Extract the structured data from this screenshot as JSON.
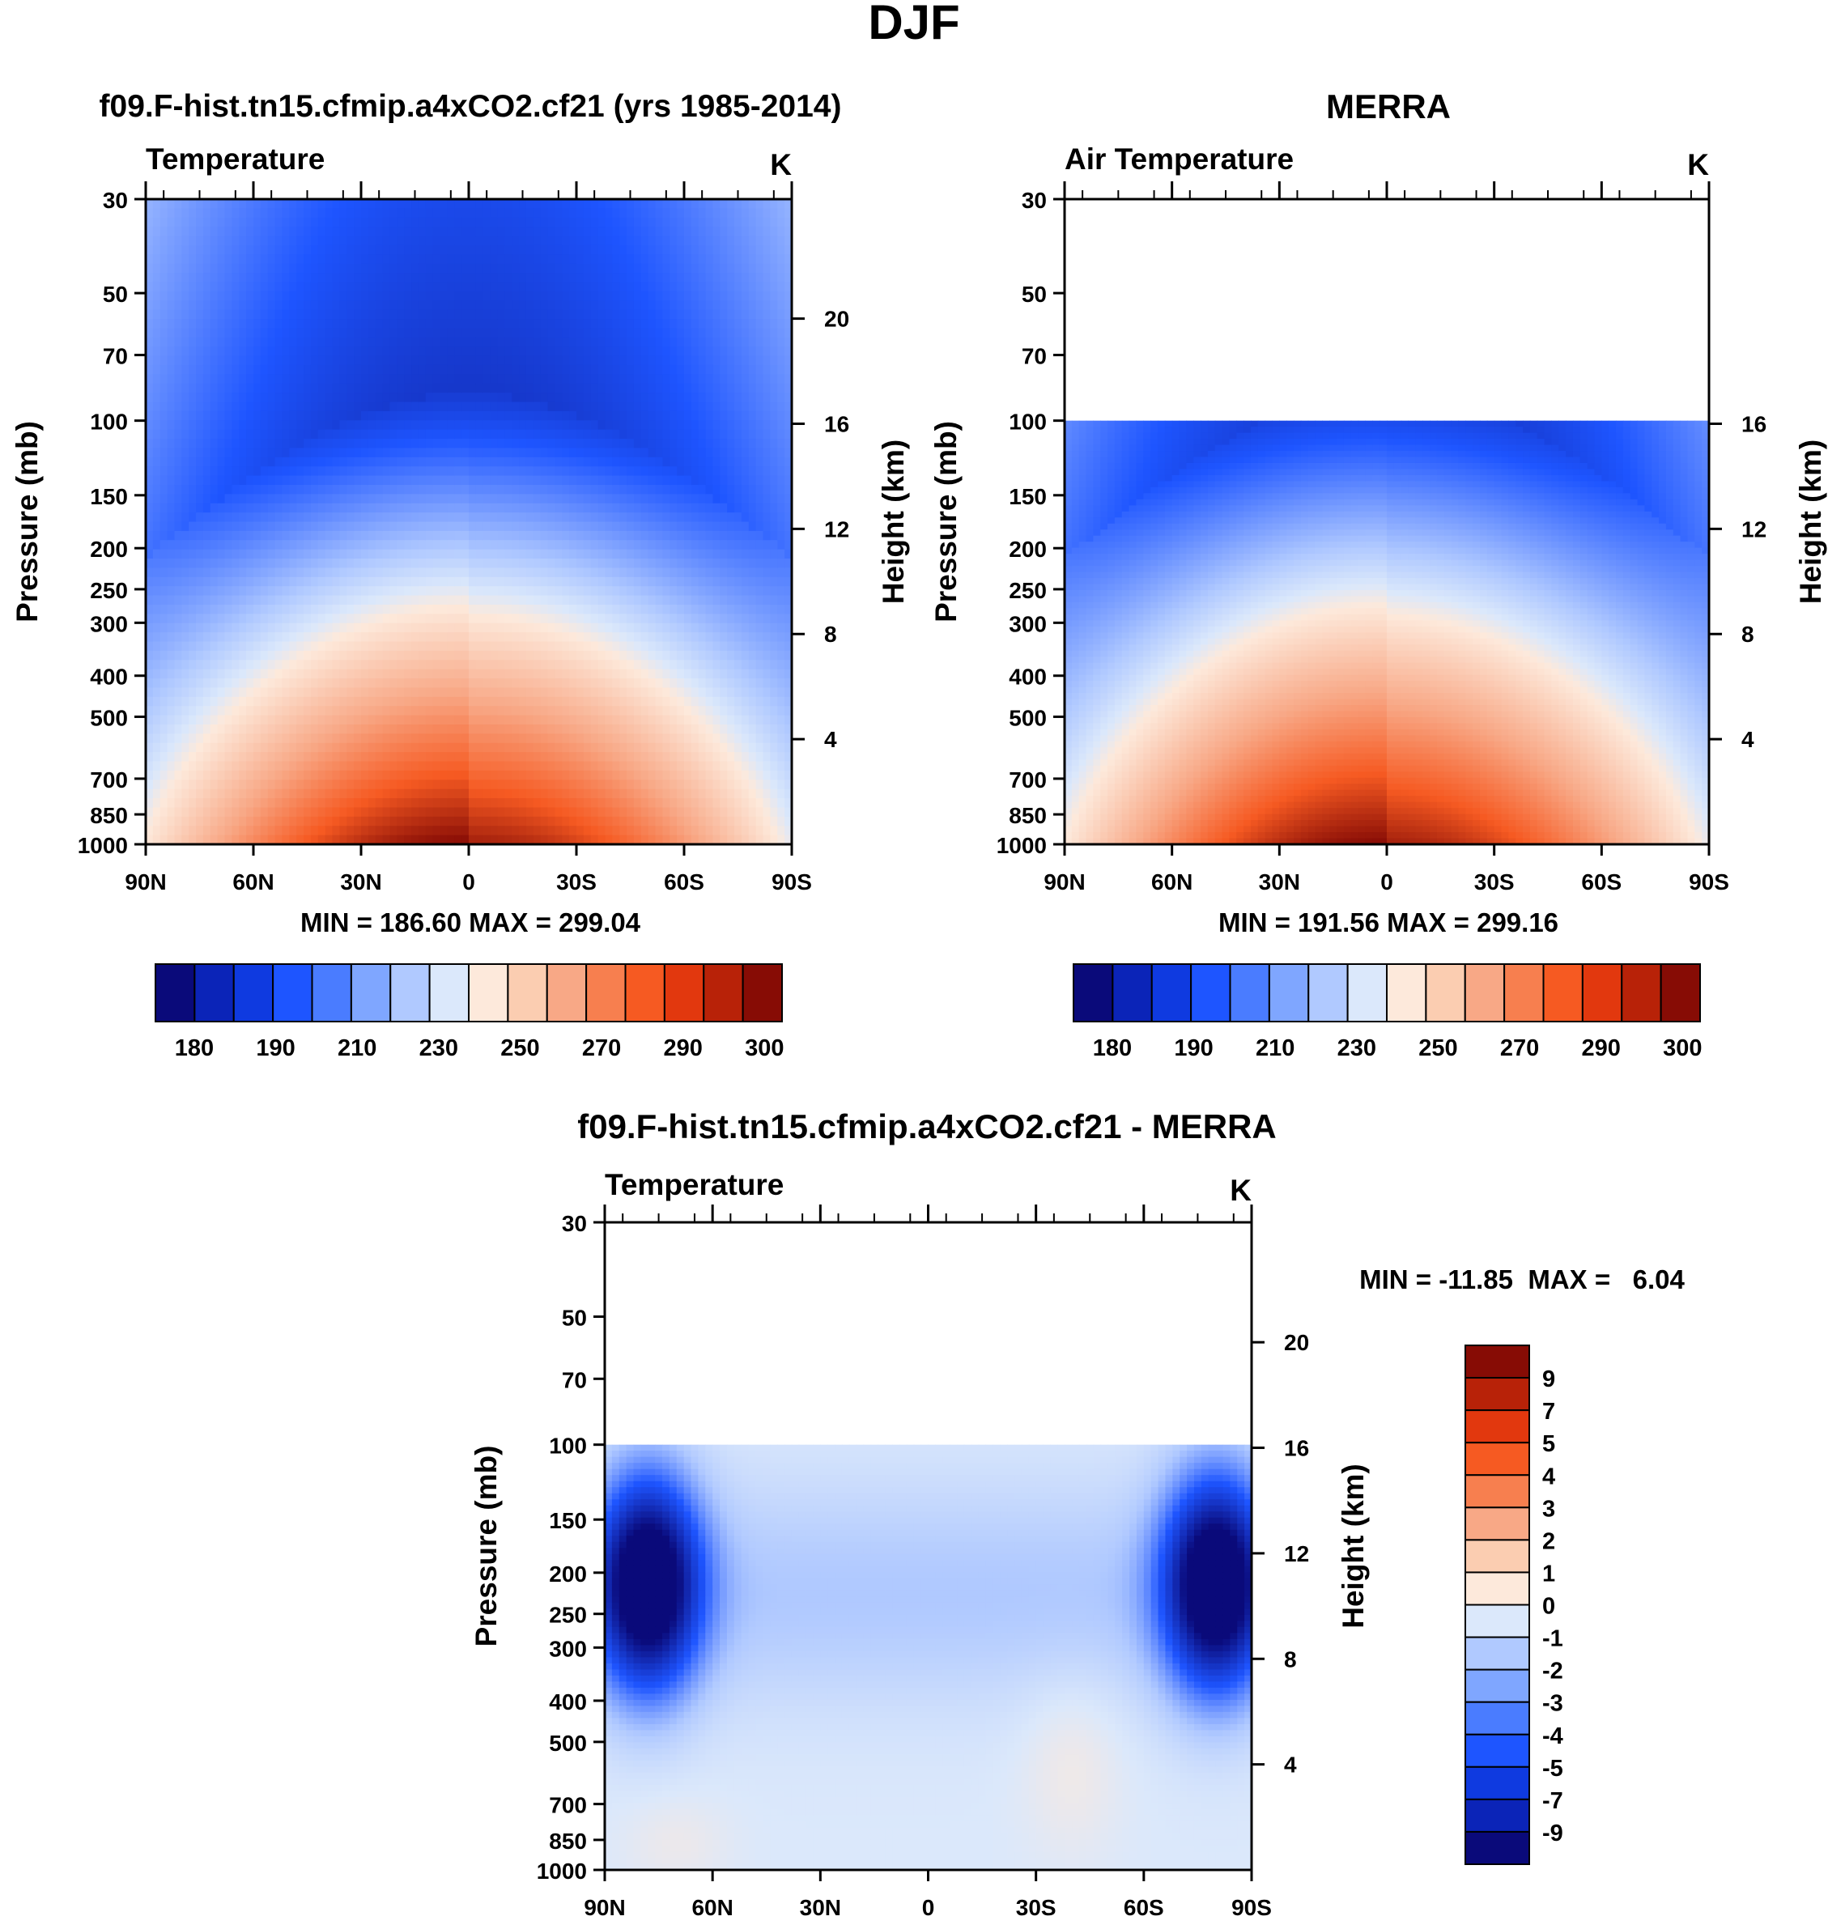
{
  "page_title": "DJF",
  "chart_data": [
    {
      "id": "model",
      "type": "heatmap",
      "title": "f09.F-hist.tn15.cfmip.a4xCO2.cf21 (yrs 1985-2014)",
      "subtitle_left": "Temperature",
      "units": "K",
      "xlabel": "",
      "ylabel": "Pressure (mb)",
      "ylabel_right": "Height (km)",
      "x_ticks": [
        "90N",
        "60N",
        "30N",
        "0",
        "30S",
        "60S",
        "90S"
      ],
      "y_ticks": [
        30,
        50,
        70,
        100,
        150,
        200,
        250,
        300,
        400,
        500,
        700,
        850,
        1000
      ],
      "height_ticks": [
        20,
        16,
        12,
        8,
        4
      ],
      "ylim": [
        1000,
        30
      ],
      "xlim": [
        90,
        -90
      ],
      "data_top_mb": 30,
      "stats": "MIN = 186.60  MAX = 299.04",
      "min": 186.6,
      "max": 299.04,
      "colorbar_labels": [
        "180",
        "190",
        "210",
        "230",
        "250",
        "270",
        "290",
        "300"
      ],
      "colorbar_colors": [
        "#0a0a7a",
        "#0b24b8",
        "#0f3ae0",
        "#1e55ff",
        "#4a7cff",
        "#7fa6ff",
        "#b0c9ff",
        "#dbe8fb",
        "#fde9db",
        "#fbcdb1",
        "#f8a886",
        "#f77f4f",
        "#f65a22",
        "#e2380e",
        "#b82208",
        "#870c05"
      ]
    },
    {
      "id": "merra",
      "type": "heatmap",
      "title": "MERRA",
      "subtitle_left": "Air Temperature",
      "units": "K",
      "xlabel": "",
      "ylabel": "Pressure (mb)",
      "ylabel_right": "Height (km)",
      "x_ticks": [
        "90N",
        "60N",
        "30N",
        "0",
        "30S",
        "60S",
        "90S"
      ],
      "y_ticks": [
        30,
        50,
        70,
        100,
        150,
        200,
        250,
        300,
        400,
        500,
        700,
        850,
        1000
      ],
      "height_ticks": [
        16,
        12,
        8,
        4
      ],
      "ylim": [
        1000,
        30
      ],
      "xlim": [
        90,
        -90
      ],
      "data_top_mb": 100,
      "stats": "MIN = 191.56  MAX = 299.16",
      "min": 191.56,
      "max": 299.16,
      "colorbar_labels": [
        "180",
        "190",
        "210",
        "230",
        "250",
        "270",
        "290",
        "300"
      ],
      "colorbar_colors": [
        "#0a0a7a",
        "#0b24b8",
        "#0f3ae0",
        "#1e55ff",
        "#4a7cff",
        "#7fa6ff",
        "#b0c9ff",
        "#dbe8fb",
        "#fde9db",
        "#fbcdb1",
        "#f8a886",
        "#f77f4f",
        "#f65a22",
        "#e2380e",
        "#b82208",
        "#870c05"
      ]
    },
    {
      "id": "difference",
      "type": "heatmap",
      "title": "f09.F-hist.tn15.cfmip.a4xCO2.cf21 - MERRA",
      "subtitle_left": "Temperature",
      "units": "K",
      "xlabel": "",
      "ylabel": "Pressure (mb)",
      "ylabel_right": "Height (km)",
      "x_ticks": [
        "90N",
        "60N",
        "30N",
        "0",
        "30S",
        "60S",
        "90S"
      ],
      "y_ticks": [
        30,
        50,
        70,
        100,
        150,
        200,
        250,
        300,
        400,
        500,
        700,
        850,
        1000
      ],
      "height_ticks": [
        20,
        16,
        12,
        8,
        4
      ],
      "ylim": [
        1000,
        30
      ],
      "xlim": [
        90,
        -90
      ],
      "data_top_mb": 100,
      "stats": "MIN = -11.85  MAX =   6.04",
      "min": -11.85,
      "max": 6.04,
      "colorbar_labels": [
        "9",
        "7",
        "5",
        "4",
        "3",
        "2",
        "1",
        "0",
        "-1",
        "-2",
        "-3",
        "-4",
        "-5",
        "-7",
        "-9"
      ],
      "colorbar_colors": [
        "#870c05",
        "#b82208",
        "#e2380e",
        "#f65a22",
        "#f77f4f",
        "#f8a886",
        "#fbcdb1",
        "#fde9db",
        "#dbe8fb",
        "#b0c9ff",
        "#7fa6ff",
        "#4a7cff",
        "#1e55ff",
        "#0f3ae0",
        "#0b24b8",
        "#0a0a7a"
      ]
    }
  ]
}
